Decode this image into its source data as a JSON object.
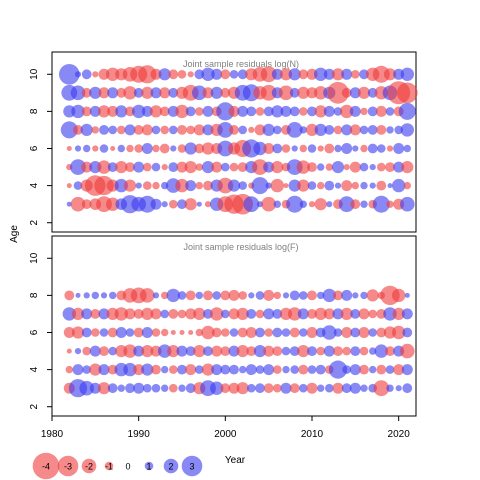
{
  "chart_data": {
    "type": "scatter",
    "encoding": "bubble",
    "ylabel": "Age",
    "xlabel": "Year",
    "xlim": [
      1980,
      2022
    ],
    "x_ticks": [
      1980,
      1990,
      2000,
      2010,
      2020
    ],
    "colors": {
      "positive": "#3a3af0",
      "negative": "#f03a3a"
    },
    "legend": {
      "position": "bottom",
      "values": [
        -4,
        -3,
        -2,
        -1,
        0,
        1,
        2,
        3
      ]
    },
    "years": [
      1982,
      1983,
      1984,
      1985,
      1986,
      1987,
      1988,
      1989,
      1990,
      1991,
      1992,
      1993,
      1994,
      1995,
      1996,
      1997,
      1998,
      1999,
      2000,
      2001,
      2002,
      2003,
      2004,
      2005,
      2006,
      2007,
      2008,
      2009,
      2010,
      2011,
      2012,
      2013,
      2014,
      2015,
      2016,
      2017,
      2018,
      2019,
      2020,
      2021
    ],
    "panels": [
      {
        "title": "Joint sample residuals log(N)",
        "ylim": [
          1.5,
          11.2
        ],
        "y_ticks": [
          2,
          4,
          6,
          8,
          10
        ],
        "ages": [
          3,
          4,
          5,
          6,
          7,
          8,
          9,
          10
        ],
        "residuals": {
          "3": [
            0.4,
            -2.0,
            -1.2,
            -1.5,
            -2.2,
            -1.8,
            1.5,
            2.6,
            2.0,
            2.4,
            1.4,
            0.6,
            -1.0,
            1.2,
            -1.6,
            0.4,
            -0.6,
            1.8,
            -2.2,
            -2.8,
            -3.0,
            2.2,
            0.6,
            -2.0,
            0.8,
            -1.0,
            2.4,
            0.8,
            -0.6,
            -1.6,
            0.6,
            -1.2,
            2.2,
            -1.2,
            0.8,
            -1.0,
            2.4,
            -0.8,
            -1.4,
            2.0
          ],
          "4": [
            -0.4,
            1.0,
            -1.6,
            -3.0,
            -2.8,
            -1.6,
            1.8,
            -1.6,
            0.6,
            -1.0,
            -0.8,
            0.8,
            2.0,
            -1.8,
            1.4,
            -0.8,
            -1.2,
            1.6,
            -2.2,
            1.6,
            1.0,
            -0.6,
            2.4,
            0.6,
            -1.8,
            -0.4,
            1.6,
            -1.6,
            1.0,
            -0.8,
            1.2,
            0.6,
            -1.4,
            -0.8,
            0.8,
            0.6,
            -1.2,
            0.4,
            1.8,
            -0.8
          ],
          "5": [
            -0.6,
            2.2,
            -1.4,
            1.6,
            -1.8,
            1.2,
            -1.6,
            -1.2,
            1.4,
            -1.0,
            1.0,
            -0.6,
            1.2,
            -1.4,
            -1.6,
            -0.8,
            1.6,
            -1.4,
            1.0,
            -1.0,
            -1.2,
            1.6,
            -2.2,
            1.4,
            -1.6,
            -1.0,
            2.2,
            -1.8,
            -1.2,
            0.8,
            -0.8,
            1.6,
            -0.6,
            -1.4,
            1.0,
            0.6,
            -1.0,
            -1.2,
            1.4,
            -1.6
          ],
          "6": [
            -0.4,
            0.6,
            0.8,
            -0.6,
            1.0,
            -0.4,
            0.8,
            -0.8,
            -1.0,
            1.4,
            -0.8,
            -1.2,
            0.6,
            -1.0,
            1.6,
            -1.2,
            -1.6,
            -1.4,
            2.2,
            -1.6,
            -2.4,
            2.6,
            1.8,
            -1.4,
            1.2,
            -1.0,
            0.6,
            -0.8,
            1.0,
            -0.6,
            -1.2,
            0.8,
            1.4,
            0.6,
            -0.8,
            1.2,
            1.0,
            -0.6,
            1.4,
            0.8
          ],
          "7": [
            2.4,
            -1.2,
            1.6,
            -0.8,
            1.2,
            1.0,
            -1.0,
            1.4,
            -1.2,
            -1.4,
            1.0,
            -1.0,
            1.0,
            -1.2,
            -1.0,
            -1.4,
            1.4,
            -1.6,
            2.2,
            -1.2,
            1.0,
            -0.6,
            -1.4,
            1.6,
            1.0,
            -1.2,
            2.2,
            0.8,
            -1.6,
            1.6,
            1.2,
            -1.0,
            1.4,
            -1.4,
            1.0,
            1.2,
            -1.2,
            0.8,
            1.0,
            1.8
          ],
          "8": [
            1.6,
            1.8,
            -1.2,
            1.4,
            -1.6,
            -1.4,
            1.6,
            -1.2,
            1.8,
            1.4,
            -1.6,
            -1.2,
            1.4,
            -1.8,
            1.2,
            -1.0,
            1.4,
            -1.2,
            2.6,
            -1.4,
            1.4,
            1.2,
            -1.0,
            1.2,
            1.6,
            1.4,
            1.2,
            -1.0,
            1.2,
            -1.6,
            1.4,
            1.0,
            -1.8,
            1.4,
            -0.8,
            1.2,
            -1.4,
            1.0,
            -1.2,
            2.4
          ],
          "9": [
            2.2,
            2.0,
            -1.2,
            1.6,
            -1.4,
            1.4,
            -1.2,
            -1.8,
            1.2,
            -1.6,
            1.4,
            -1.4,
            1.2,
            -1.6,
            -2.2,
            2.0,
            -1.4,
            1.6,
            -1.2,
            -1.6,
            2.2,
            2.4,
            -1.8,
            -2.2,
            1.4,
            -2.0,
            1.2,
            -1.6,
            -1.4,
            -1.8,
            1.6,
            -3.2,
            -1.2,
            1.4,
            -1.6,
            1.2,
            -1.8,
            2.0,
            -3.4,
            -3.0
          ],
          "10": [
            3.0,
            0.6,
            1.2,
            -0.6,
            -1.4,
            -1.8,
            -1.6,
            -2.0,
            -2.4,
            -2.6,
            -1.4,
            1.6,
            -1.2,
            -1.0,
            -0.6,
            1.2,
            1.8,
            1.4,
            -1.2,
            1.0,
            1.2,
            -1.6,
            -2.0,
            -2.2,
            1.4,
            -1.6,
            1.6,
            -1.2,
            -1.4,
            1.8,
            1.4,
            -1.6,
            1.4,
            -1.0,
            1.2,
            -1.8,
            -2.4,
            -1.6,
            1.4,
            1.8
          ]
        }
      },
      {
        "title": "Joint sample residuals log(F)",
        "ylim": [
          1.5,
          11.2
        ],
        "y_ticks": [
          2,
          4,
          6,
          8,
          10
        ],
        "ages": [
          3,
          4,
          5,
          6,
          7,
          8
        ],
        "residuals": {
          "3": [
            -1.4,
            2.6,
            2.0,
            1.4,
            -1.6,
            1.2,
            0.8,
            1.2,
            1.4,
            1.0,
            1.0,
            0.8,
            -1.0,
            0.8,
            1.2,
            -1.6,
            2.2,
            1.8,
            -1.2,
            -1.4,
            -1.6,
            1.0,
            1.2,
            -1.2,
            -1.0,
            1.4,
            -1.2,
            1.0,
            -1.4,
            0.8,
            1.0,
            -1.4,
            1.2,
            1.4,
            0.8,
            1.0,
            -2.2,
            0.8,
            0.6,
            1.2
          ],
          "4": [
            -0.8,
            1.4,
            1.0,
            -1.6,
            1.4,
            -1.2,
            1.8,
            1.8,
            -1.4,
            1.6,
            -1.2,
            0.8,
            -1.0,
            1.2,
            -1.4,
            1.0,
            -1.6,
            1.4,
            1.2,
            1.2,
            0.8,
            1.4,
            1.0,
            1.4,
            -1.0,
            0.8,
            1.0,
            -1.2,
            1.0,
            1.2,
            -1.0,
            2.6,
            1.0,
            1.4,
            -1.2,
            0.8,
            -1.2,
            1.0,
            -1.4,
            1.4
          ],
          "5": [
            -0.4,
            0.6,
            -1.0,
            1.4,
            -1.2,
            1.0,
            -1.6,
            -1.8,
            1.4,
            -1.6,
            -1.4,
            1.8,
            -1.6,
            1.4,
            1.2,
            -1.6,
            1.2,
            -1.4,
            -1.2,
            1.4,
            -1.6,
            -1.2,
            1.6,
            -1.4,
            -1.2,
            1.0,
            1.2,
            -1.6,
            1.2,
            -1.0,
            1.4,
            -1.2,
            -1.0,
            1.2,
            -1.0,
            0.8,
            1.8,
            -1.2,
            1.4,
            -2.0
          ],
          "6": [
            -1.4,
            -1.6,
            1.2,
            -1.0,
            1.0,
            -1.2,
            1.4,
            1.0,
            -1.2,
            1.4,
            -1.0,
            -0.8,
            -0.4,
            -0.4,
            -0.4,
            -0.8,
            -1.8,
            -1.2,
            -1.0,
            1.0,
            -1.2,
            -1.4,
            1.2,
            -1.0,
            1.2,
            1.0,
            -1.2,
            1.0,
            -1.4,
            1.2,
            2.0,
            1.0,
            -1.4,
            1.2,
            -1.4,
            1.0,
            -1.2,
            -1.6,
            -1.8,
            1.2
          ],
          "7": [
            1.8,
            -1.6,
            1.4,
            -1.2,
            1.4,
            -1.6,
            -1.8,
            -1.4,
            -1.2,
            -1.6,
            -1.4,
            1.0,
            -1.2,
            -1.0,
            -1.4,
            -1.6,
            1.2,
            -1.8,
            1.0,
            -1.4,
            -1.6,
            1.2,
            -1.0,
            1.4,
            1.2,
            -1.6,
            -1.8,
            1.4,
            -1.2,
            -1.6,
            -1.4,
            1.4,
            -1.6,
            1.2,
            -1.4,
            -1.0,
            -1.2,
            1.8,
            -1.6,
            1.4
          ],
          "8": [
            -1.2,
            0.4,
            0.6,
            0.8,
            0.6,
            0.8,
            -1.2,
            -2.0,
            -2.2,
            -2.0,
            0.6,
            -0.8,
            1.8,
            1.0,
            -1.2,
            0.8,
            -1.2,
            1.0,
            -1.2,
            -1.4,
            -1.0,
            0.6,
            1.0,
            -1.4,
            -0.8,
            0.6,
            1.2,
            1.0,
            -1.2,
            0.8,
            1.8,
            -1.2,
            1.4,
            0.6,
            0.8,
            -1.6,
            -0.8,
            -2.8,
            -1.8,
            0.4
          ]
        }
      }
    ]
  }
}
